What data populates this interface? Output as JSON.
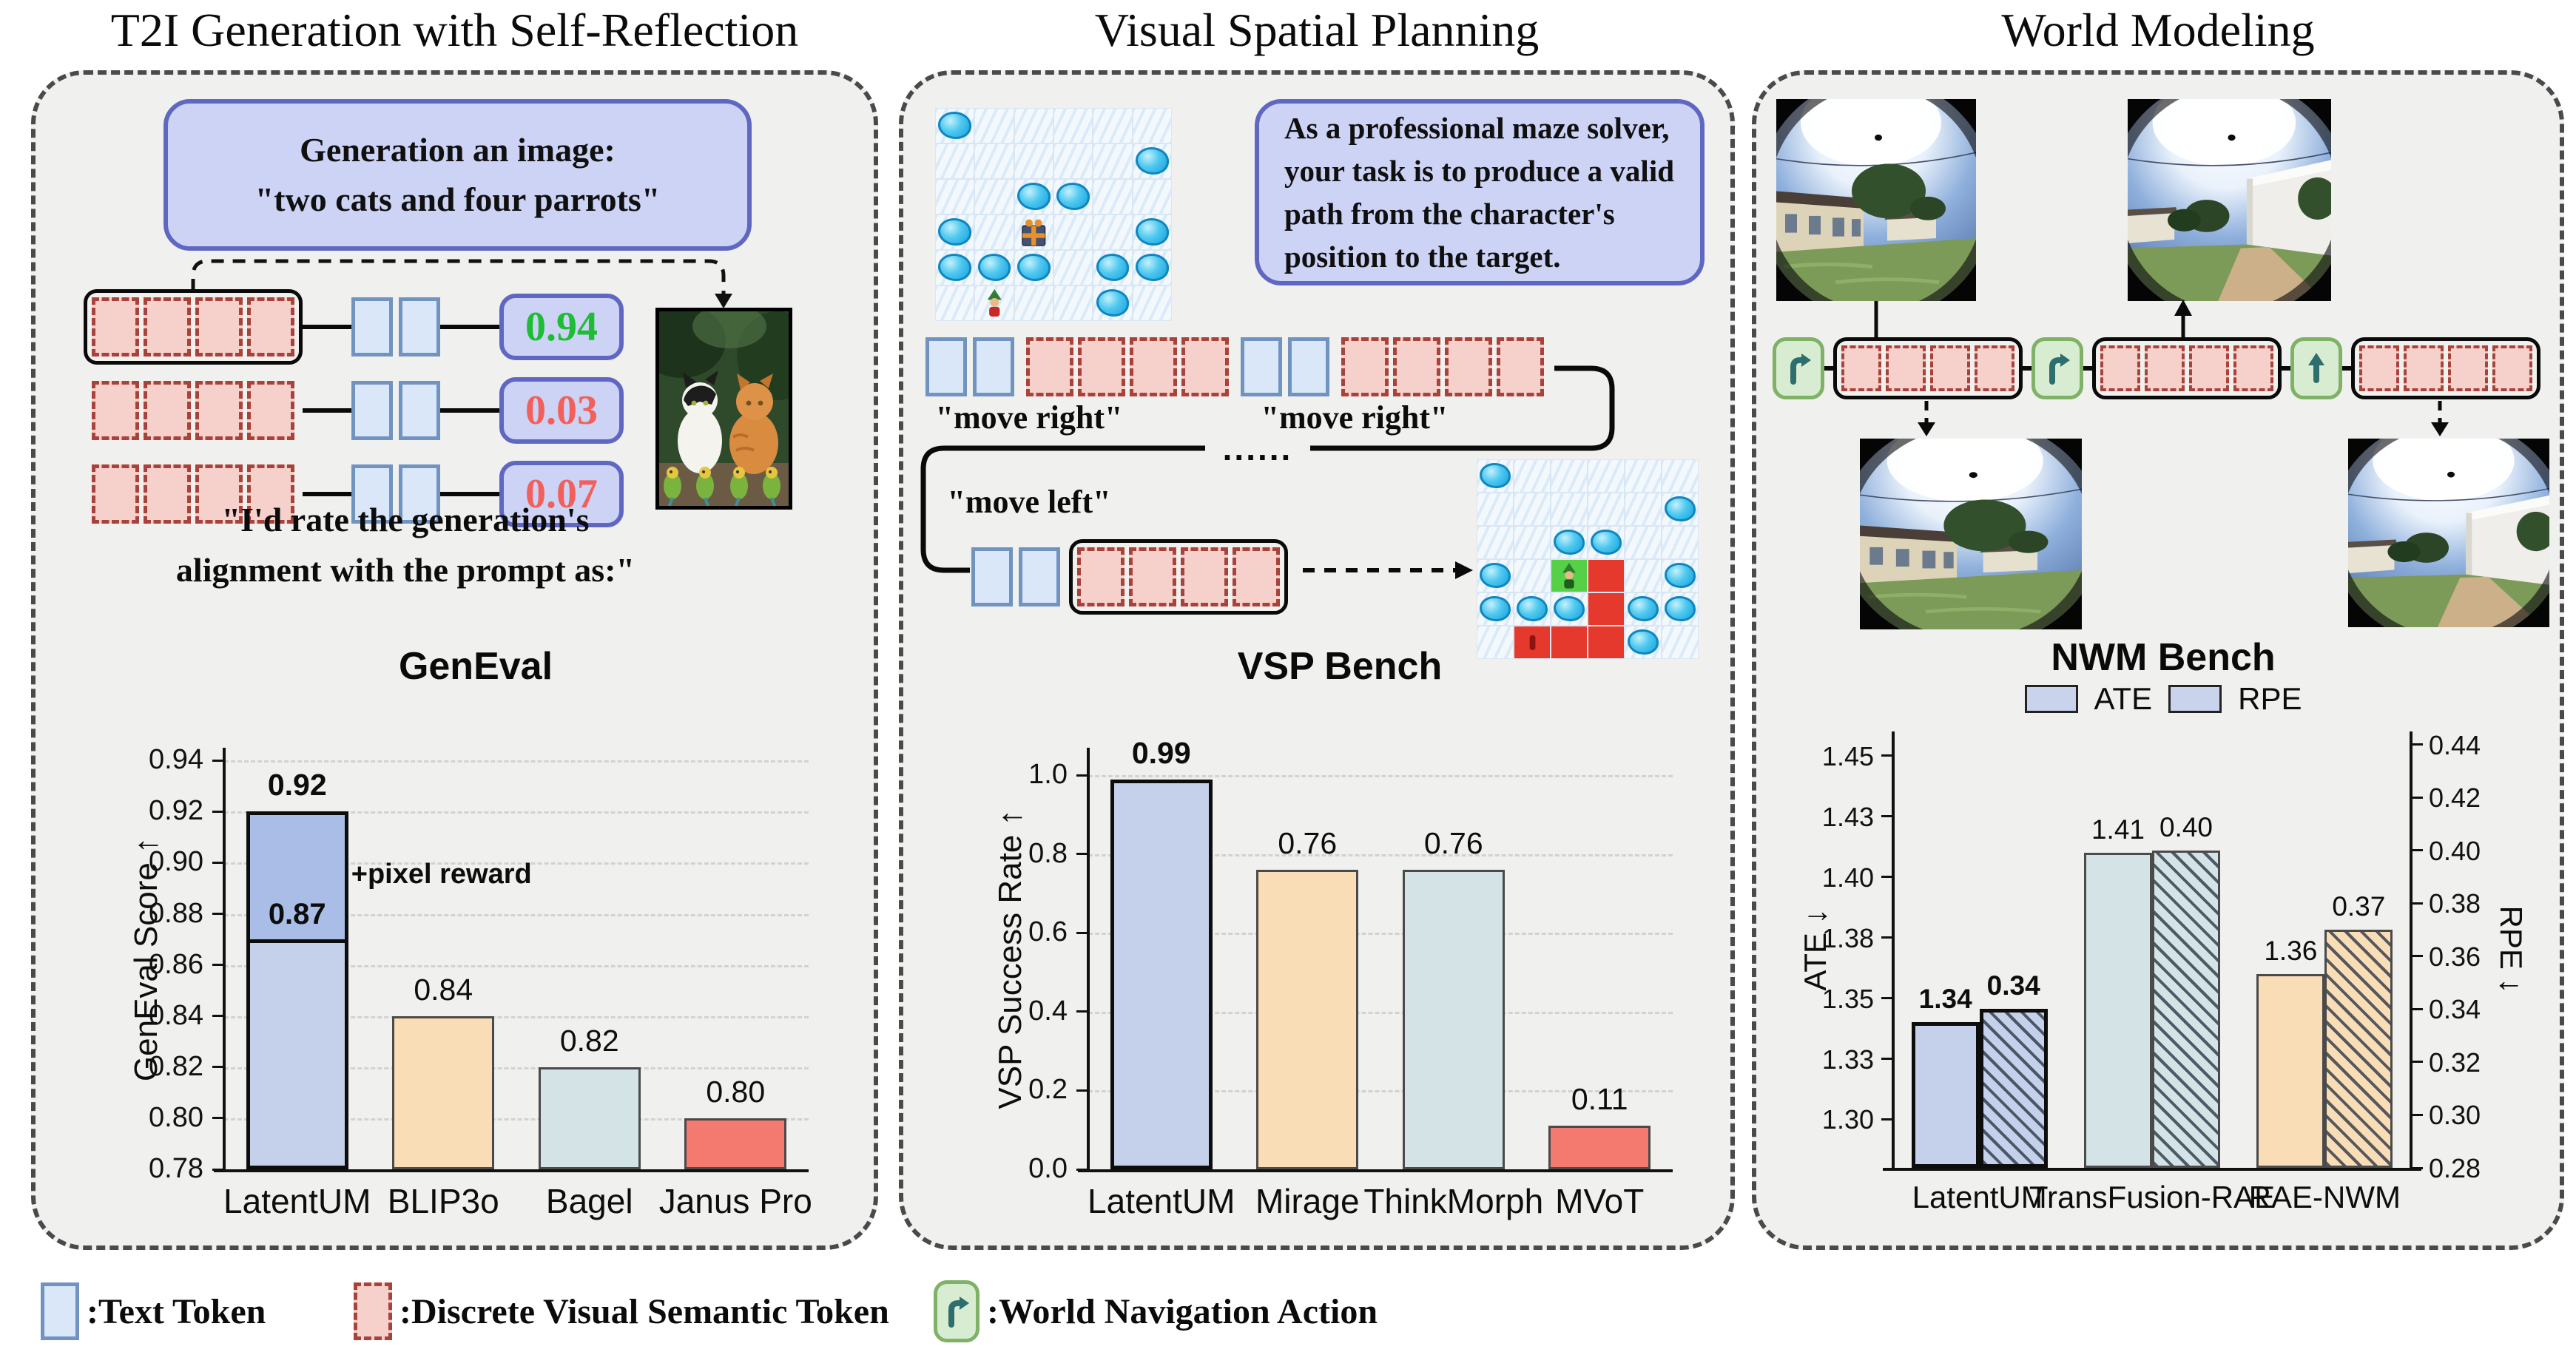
{
  "figure": {
    "panels": {
      "t2i": {
        "title": "T2I Generation with Self-Reflection",
        "prompt": {
          "line1": "Generation an image:",
          "line2": "\"two cats and four parrots\""
        },
        "rows": [
          {
            "pink": 4,
            "blue": 2,
            "outlined": true,
            "score": "0.94",
            "score_color": "#1ebd35"
          },
          {
            "pink": 4,
            "blue": 2,
            "outlined": false,
            "score": "0.03",
            "score_color": "#f2605c"
          },
          {
            "pink": 4,
            "blue": 2,
            "outlined": false,
            "score": "0.07",
            "score_color": "#f2605c"
          }
        ],
        "quote": {
          "line1": "\"I'd rate the generation's",
          "line2": "alignment with the prompt as:\""
        }
      },
      "vsp": {
        "title": "Visual Spatial Planning",
        "instruction": "As a professional maze solver, your task is to produce a valid path from the character's position to the target.",
        "label_move_right_1": "\"move right\"",
        "label_move_right_2": "\"move right\"",
        "label_move_left": "\"move left\"",
        "ellipsis": "......",
        "maze_start": [
          "H.....",
          ".....H",
          "..HH..",
          "H.G..H",
          "HHH.HH",
          ".C..H."
        ],
        "maze_solved": [
          "H.....",
          ".....H",
          "..HH..",
          "H.TR.H",
          "HHHRHH",
          ".SRRH."
        ],
        "row1": [
          {
            "blue": 2
          },
          {
            "pink": 4
          },
          {
            "blue": 2
          },
          {
            "pink": 4
          }
        ],
        "row2": [
          {
            "blue": 2
          },
          {
            "pink": 4,
            "outlined": true
          }
        ]
      },
      "world": {
        "title": "World Modeling",
        "row": [
          {
            "action": "turn-right"
          },
          {
            "pink": 4,
            "outlined": true
          },
          {
            "action": "turn-right"
          },
          {
            "pink": 4,
            "outlined": true
          },
          {
            "action": "up"
          },
          {
            "pink": 4,
            "outlined": true
          }
        ]
      }
    },
    "legend": {
      "text_token": ":Text Token",
      "visual_token": ":Discrete Visual Semantic Token",
      "nav_action": ":World Navigation Action"
    },
    "colors": {
      "text_token_fill": "#d9e7f8",
      "text_token_border": "#7093c0",
      "visual_token_fill": "#f6d0cb",
      "visual_token_border": "#a8423a",
      "action_fill": "#d8ecd2",
      "action_border": "#7fb266",
      "action_arrow": "#2e6e6e",
      "box_fill": "#cdd3f5",
      "box_border": "#6067c2",
      "panel_bg": "#f0f0ee"
    }
  },
  "chart_data": [
    {
      "type": "bar",
      "title": "GenEval",
      "ylabel": "GenEval Score ↑",
      "categories": [
        "LatentUM",
        "BLIP3o",
        "Bagel",
        "Janus Pro"
      ],
      "values": [
        0.92,
        0.84,
        0.82,
        0.8
      ],
      "value_labels": [
        "0.92",
        "0.84",
        "0.82",
        "0.80"
      ],
      "bar_colors": [
        "#c5d1ea",
        "#f8ddb6",
        "#d4e4e6",
        "#f4796f"
      ],
      "stack": {
        "category": "LatentUM",
        "base": 0.87,
        "base_label": "0.87",
        "total": 0.92,
        "top_color": "#a9bde6",
        "annotation": "+pixel reward"
      },
      "ylim": [
        0.78,
        0.945
      ],
      "yticks": [
        {
          "v": 0.78,
          "label": "0.78"
        },
        {
          "v": 0.8,
          "label": "0.80"
        },
        {
          "v": 0.82,
          "label": "0.82"
        },
        {
          "v": 0.84,
          "label": "0.84"
        },
        {
          "v": 0.86,
          "label": "0.86"
        },
        {
          "v": 0.88,
          "label": "0.88"
        },
        {
          "v": 0.9,
          "label": "0.90"
        },
        {
          "v": 0.92,
          "label": "0.92"
        },
        {
          "v": 0.94,
          "label": "0.94"
        }
      ],
      "grid": true,
      "bold_first": true
    },
    {
      "type": "bar",
      "title": "VSP Bench",
      "ylabel": "VSP Success Rate ↑",
      "categories": [
        "LatentUM",
        "Mirage",
        "ThinkMorph",
        "MVoT"
      ],
      "values": [
        0.99,
        0.76,
        0.76,
        0.11
      ],
      "value_labels": [
        "0.99",
        "0.76",
        "0.76",
        "0.11"
      ],
      "bar_colors": [
        "#c5d1ea",
        "#f8ddb6",
        "#d4e4e6",
        "#f4796f"
      ],
      "ylim": [
        0,
        1.07
      ],
      "yticks": [
        {
          "v": 0.0,
          "label": "0.0"
        },
        {
          "v": 0.2,
          "label": "0.2"
        },
        {
          "v": 0.4,
          "label": "0.4"
        },
        {
          "v": 0.6,
          "label": "0.6"
        },
        {
          "v": 0.8,
          "label": "0.8"
        },
        {
          "v": 1.0,
          "label": "1.0"
        }
      ],
      "grid": true,
      "bold_first": true
    },
    {
      "type": "grouped-bar",
      "title": "NWM Bench",
      "categories": [
        "LatentUM",
        "TransFusion-RAE",
        "RAE-NWM"
      ],
      "group_colors": [
        "#c5d1ea",
        "#d4e4e6",
        "#f8ddb6"
      ],
      "series": [
        {
          "name": "ATE",
          "axis": "left",
          "style": "solid",
          "values": [
            1.34,
            1.41,
            1.36
          ],
          "labels": [
            "1.34",
            "1.41",
            "1.36"
          ]
        },
        {
          "name": "RPE",
          "axis": "right",
          "style": "hatched",
          "values": [
            0.34,
            0.4,
            0.37
          ],
          "labels": [
            "0.34",
            "0.40",
            "0.37"
          ]
        }
      ],
      "left_axis": {
        "label": "ATE ↓",
        "range": [
          1.28,
          1.46
        ],
        "ticks": [
          {
            "v": 1.3,
            "label": "1.30"
          },
          {
            "v": 1.325,
            "label": "1.33"
          },
          {
            "v": 1.35,
            "label": "1.35"
          },
          {
            "v": 1.375,
            "label": "1.38"
          },
          {
            "v": 1.4,
            "label": "1.40"
          },
          {
            "v": 1.425,
            "label": "1.43"
          },
          {
            "v": 1.45,
            "label": "1.45"
          }
        ]
      },
      "right_axis": {
        "label": "RPE ↓",
        "range": [
          0.28,
          0.445
        ],
        "ticks": [
          {
            "v": 0.28,
            "label": "0.28"
          },
          {
            "v": 0.3,
            "label": "0.30"
          },
          {
            "v": 0.32,
            "label": "0.32"
          },
          {
            "v": 0.34,
            "label": "0.34"
          },
          {
            "v": 0.36,
            "label": "0.36"
          },
          {
            "v": 0.38,
            "label": "0.38"
          },
          {
            "v": 0.4,
            "label": "0.40"
          },
          {
            "v": 0.42,
            "label": "0.42"
          },
          {
            "v": 0.44,
            "label": "0.44"
          }
        ]
      },
      "legend_position": "top",
      "bold_first": true
    }
  ]
}
